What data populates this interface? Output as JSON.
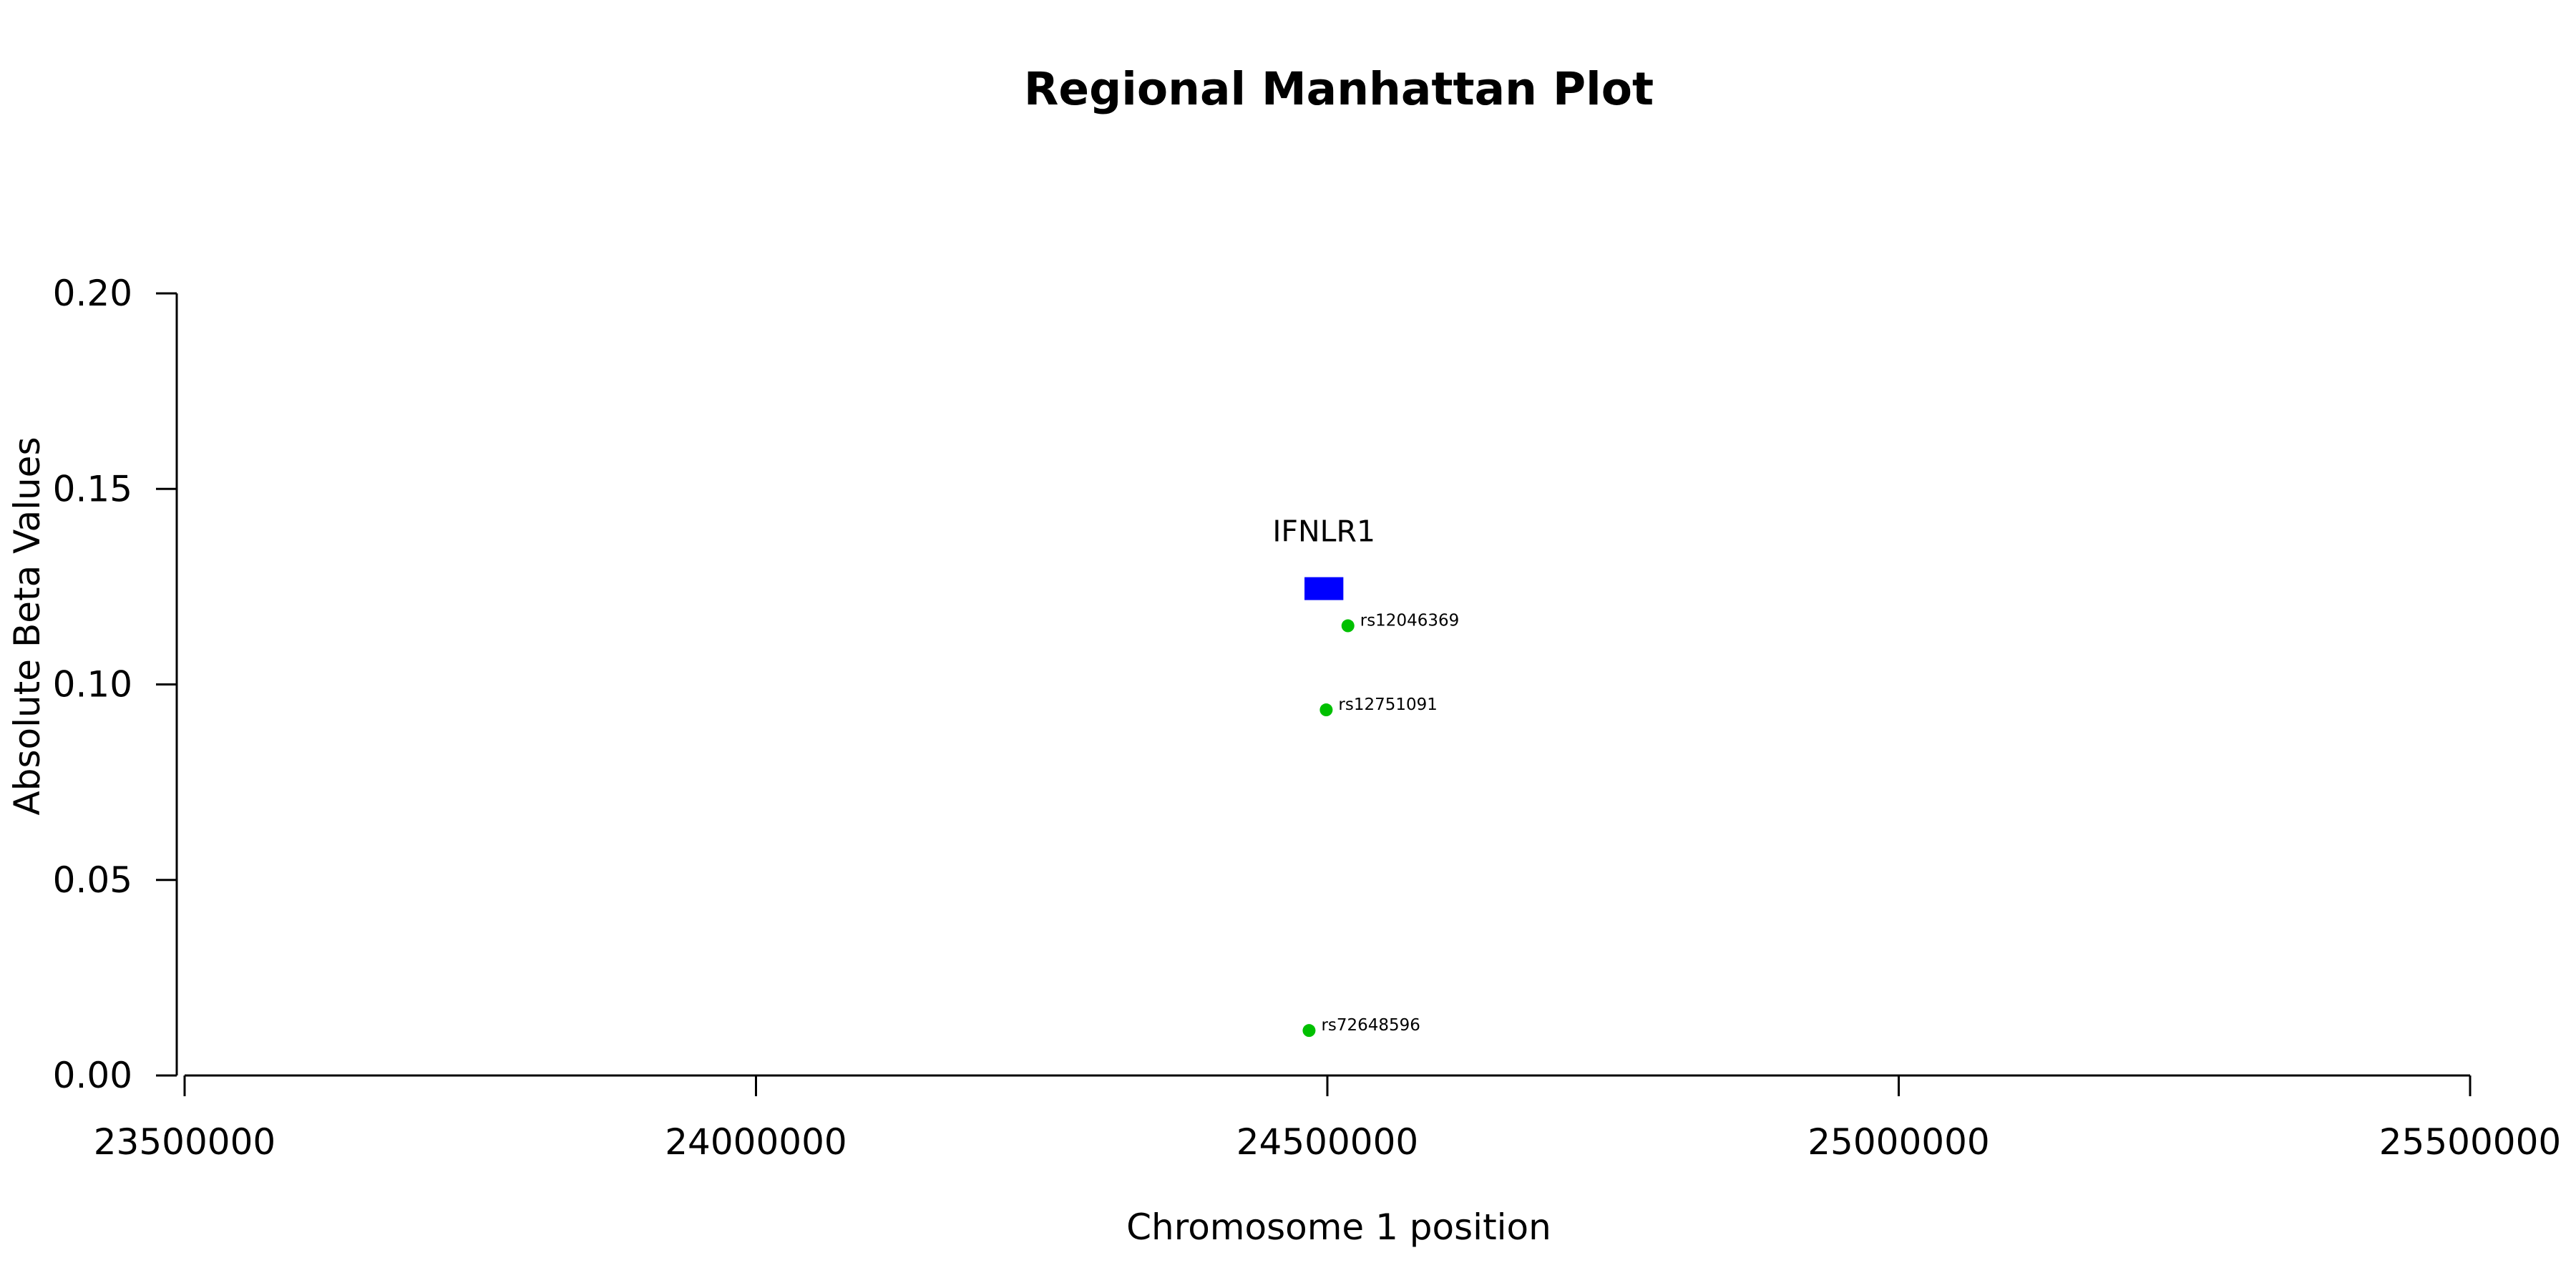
{
  "chart_data": {
    "type": "scatter",
    "title": "Regional Manhattan Plot",
    "xlabel": "Chromosome 1 position",
    "ylabel": "Absolute Beta Values",
    "xlim": [
      23500000,
      25500000
    ],
    "ylim": [
      0,
      0.2
    ],
    "x_ticks": [
      23500000,
      24000000,
      24500000,
      25000000,
      25500000
    ],
    "x_tick_labels": [
      "23500000",
      "24000000",
      "24500000",
      "25000000",
      "25500000"
    ],
    "y_ticks": [
      0,
      0.05,
      0.1,
      0.15,
      0.2
    ],
    "y_tick_labels": [
      "0.00",
      "0.05",
      "0.10",
      "0.15",
      "0.20"
    ],
    "grid": false,
    "point_color": "#00c000",
    "gene_color": "#0000ff",
    "points": [
      {
        "label": "rs12046369",
        "x": 24518000,
        "y": 0.115
      },
      {
        "label": "rs12751091",
        "x": 24499000,
        "y": 0.0935
      },
      {
        "label": "rs72648596",
        "x": 24484000,
        "y": 0.0115
      }
    ],
    "genes": [
      {
        "name": "IFNLR1",
        "start": 24480000,
        "end": 24514000,
        "y": 0.1245
      }
    ]
  }
}
